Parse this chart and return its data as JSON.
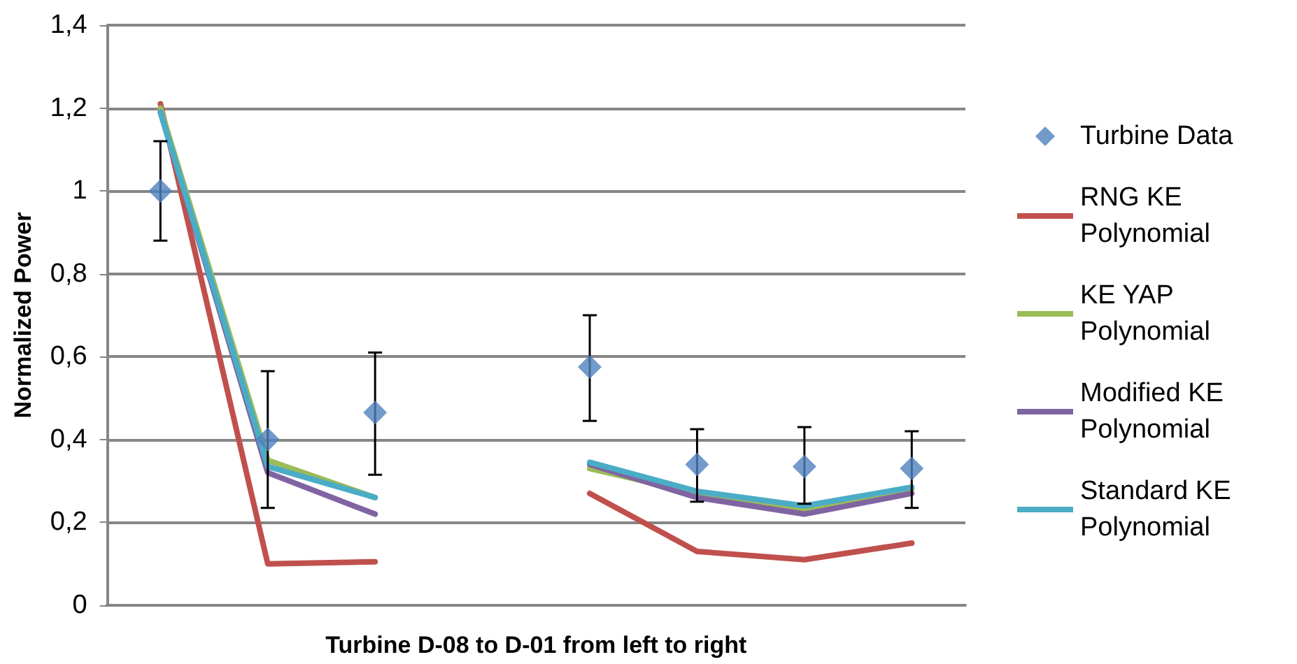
{
  "chart_data": {
    "type": "line",
    "xlabel": "Turbine D-08 to D-01 from left to right",
    "ylabel": "Normalized Power",
    "categories": [
      null,
      null,
      null,
      null,
      null,
      null,
      null,
      null
    ],
    "series": [
      {
        "name": "Turbine Data",
        "type": "scatter",
        "marker": "diamond",
        "color": "#4f81bd",
        "values": [
          1.0,
          0.4,
          0.465,
          null,
          0.575,
          0.34,
          0.335,
          0.33
        ],
        "errors": [
          [
            0.88,
            1.12
          ],
          [
            0.235,
            0.565
          ],
          [
            0.315,
            0.61
          ],
          null,
          [
            0.445,
            0.7
          ],
          [
            0.25,
            0.425
          ],
          [
            0.245,
            0.43
          ],
          [
            0.235,
            0.42
          ]
        ]
      },
      {
        "name": "RNG KE Polynomial",
        "color": "#c0504d",
        "values": [
          1.21,
          0.1,
          0.105,
          null,
          0.27,
          0.13,
          0.11,
          0.15
        ]
      },
      {
        "name": "KE YAP Polynomial",
        "color": "#9bbb59",
        "values": [
          1.2,
          0.35,
          0.26,
          null,
          0.33,
          0.27,
          0.23,
          0.28
        ]
      },
      {
        "name": "Modified KE Polynomial",
        "color": "#8064a2",
        "values": [
          1.19,
          0.32,
          0.22,
          null,
          0.34,
          0.26,
          0.22,
          0.27
        ]
      },
      {
        "name": "Standard KE Polynomial",
        "color": "#4bacc6",
        "values": [
          1.19,
          0.335,
          0.26,
          null,
          0.345,
          0.275,
          0.24,
          0.285
        ]
      }
    ],
    "ylim": [
      0,
      1.4
    ],
    "yticks": [
      {
        "value": 0,
        "label": "0"
      },
      {
        "value": 0.2,
        "label": "0,2"
      },
      {
        "value": 0.4,
        "label": "0,4"
      },
      {
        "value": 0.6,
        "label": "0,6"
      },
      {
        "value": 0.8,
        "label": "0,8"
      },
      {
        "value": 1,
        "label": "1"
      },
      {
        "value": 1.2,
        "label": "1,2"
      },
      {
        "value": 1.4,
        "label": "1,4"
      }
    ],
    "grid": "y",
    "legend": "right",
    "tick_labels": "y",
    "marker": "none",
    "line_style": "solid"
  }
}
